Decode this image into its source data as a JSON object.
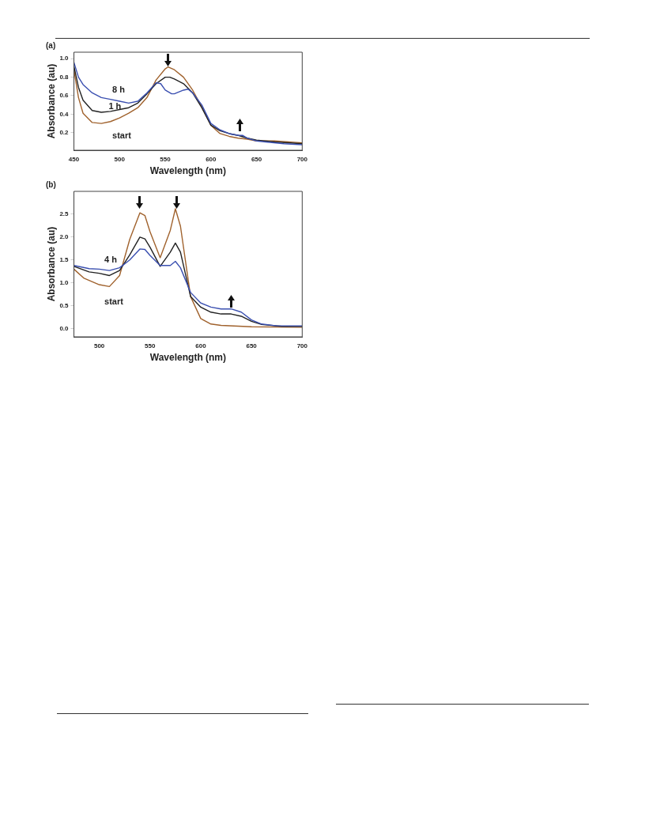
{
  "chart_data": [
    {
      "type": "line",
      "title": "(a)",
      "xlabel": "Wavelength (nm)",
      "ylabel": "Absorbance (au)",
      "xlim": [
        450,
        700
      ],
      "xticks": [
        450,
        500,
        550,
        600,
        650,
        700
      ],
      "ylim": [
        0.01,
        1.07
      ],
      "yticks": [
        0.2,
        0.4,
        0.6,
        0.8,
        {
          "value": 1,
          "label": "1.0"
        }
      ],
      "grid": false,
      "line_style": "solid",
      "series": [
        {
          "name": "8 h",
          "color": "#3a4fb0",
          "x": [
            450,
            455,
            460,
            470,
            480,
            490,
            500,
            510,
            520,
            530,
            540,
            545,
            550,
            557,
            560,
            570,
            575,
            580,
            590,
            600,
            610,
            620,
            630,
            635,
            640,
            650,
            660,
            680,
            700
          ],
          "values": [
            0.96,
            0.8,
            0.72,
            0.63,
            0.58,
            0.56,
            0.54,
            0.52,
            0.54,
            0.63,
            0.74,
            0.73,
            0.66,
            0.62,
            0.62,
            0.66,
            0.67,
            0.63,
            0.5,
            0.3,
            0.23,
            0.19,
            0.17,
            0.17,
            0.14,
            0.11,
            0.1,
            0.08,
            0.07
          ]
        },
        {
          "name": "1 h",
          "color": "#222222",
          "x": [
            450,
            455,
            460,
            470,
            480,
            490,
            500,
            510,
            520,
            530,
            540,
            550,
            555,
            560,
            570,
            580,
            590,
            600,
            610,
            620,
            630,
            640,
            650,
            670,
            700
          ],
          "values": [
            0.92,
            0.69,
            0.55,
            0.44,
            0.42,
            0.43,
            0.45,
            0.47,
            0.52,
            0.62,
            0.73,
            0.8,
            0.8,
            0.78,
            0.73,
            0.63,
            0.47,
            0.28,
            0.22,
            0.19,
            0.17,
            0.14,
            0.12,
            0.1,
            0.08
          ]
        },
        {
          "name": "start",
          "color": "#a0622d",
          "x": [
            450,
            455,
            460,
            470,
            480,
            490,
            500,
            510,
            520,
            530,
            540,
            550,
            553,
            560,
            570,
            580,
            590,
            600,
            610,
            620,
            630,
            640,
            650,
            670,
            700
          ],
          "values": [
            0.88,
            0.58,
            0.41,
            0.31,
            0.3,
            0.32,
            0.36,
            0.41,
            0.47,
            0.58,
            0.77,
            0.89,
            0.91,
            0.88,
            0.8,
            0.66,
            0.48,
            0.28,
            0.19,
            0.16,
            0.14,
            0.13,
            0.11,
            0.11,
            0.09
          ]
        }
      ]
    },
    {
      "type": "line",
      "title": "(b)",
      "xlabel": "Wavelength (nm)",
      "ylabel": "Absorbance (au)",
      "xlim": [
        475,
        700
      ],
      "xticks": [
        500,
        550,
        600,
        650,
        700
      ],
      "ylim": [
        -0.18,
        3.0
      ],
      "yticks": [
        {
          "value": 0,
          "label": "0.0"
        },
        0.5,
        {
          "value": 1,
          "label": "1.0"
        },
        1.5,
        {
          "value": 2,
          "label": "2.0"
        },
        2.5
      ],
      "grid": false,
      "line_style": "solid",
      "series": [
        {
          "name": "4 h",
          "color": "#3a4fb0",
          "x": [
            475,
            490,
            500,
            510,
            520,
            530,
            540,
            545,
            550,
            560,
            570,
            575,
            580,
            590,
            600,
            610,
            620,
            630,
            640,
            650,
            660,
            675,
            700
          ],
          "values": [
            1.38,
            1.31,
            1.3,
            1.27,
            1.33,
            1.5,
            1.74,
            1.73,
            1.6,
            1.38,
            1.38,
            1.47,
            1.33,
            0.79,
            0.56,
            0.47,
            0.43,
            0.43,
            0.36,
            0.19,
            0.1,
            0.06,
            0.06
          ]
        },
        {
          "color": "#222222",
          "x": [
            475,
            490,
            500,
            510,
            520,
            530,
            540,
            545,
            550,
            560,
            570,
            575,
            580,
            590,
            600,
            610,
            620,
            630,
            640,
            650,
            660,
            680,
            700
          ],
          "values": [
            1.36,
            1.24,
            1.21,
            1.16,
            1.27,
            1.61,
            2.0,
            1.96,
            1.78,
            1.36,
            1.67,
            1.87,
            1.67,
            0.7,
            0.47,
            0.36,
            0.32,
            0.32,
            0.27,
            0.16,
            0.09,
            0.05,
            0.05
          ]
        },
        {
          "name": "start",
          "color": "#a0622d",
          "x": [
            475,
            485,
            500,
            510,
            520,
            530,
            540,
            545,
            550,
            560,
            570,
            575,
            580,
            590,
            600,
            610,
            620,
            650,
            700
          ],
          "values": [
            1.3,
            1.1,
            0.96,
            0.92,
            1.16,
            1.95,
            2.53,
            2.47,
            2.12,
            1.55,
            2.15,
            2.62,
            2.24,
            0.7,
            0.22,
            0.1,
            0.07,
            0.04,
            0.03
          ]
        }
      ]
    }
  ]
}
